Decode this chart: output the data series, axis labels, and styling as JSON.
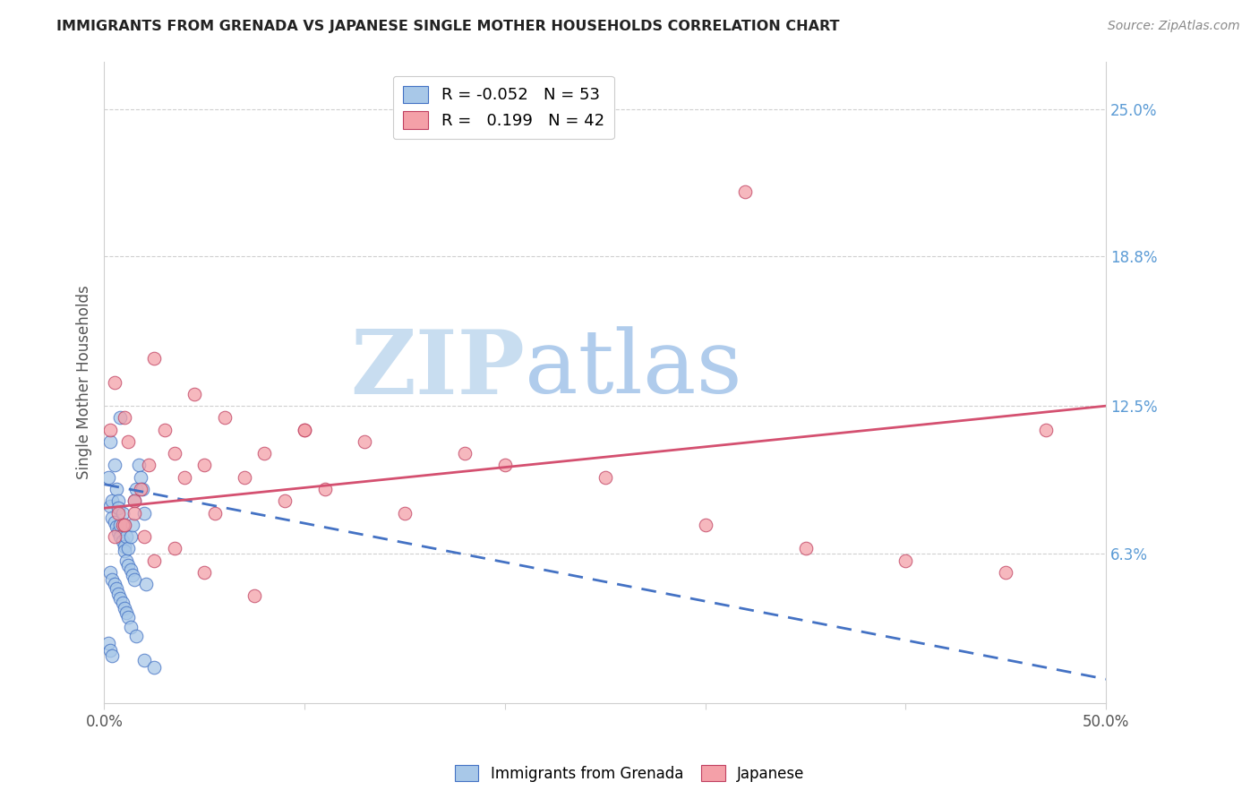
{
  "title": "IMMIGRANTS FROM GRENADA VS JAPANESE SINGLE MOTHER HOUSEHOLDS CORRELATION CHART",
  "source": "Source: ZipAtlas.com",
  "ylabel": "Single Mother Households",
  "xlim": [
    0.0,
    0.5
  ],
  "ylim": [
    0.0,
    0.27
  ],
  "legend_color1": "#a8c8e8",
  "legend_color2": "#f4a0a8",
  "line1_color": "#4472c4",
  "line2_color": "#d45070",
  "scatter1_edge": "#4472c4",
  "scatter2_edge": "#c04060",
  "watermark_zip_color": "#c8ddf0",
  "watermark_atlas_color": "#b0ccec",
  "background_color": "#ffffff",
  "grid_color": "#d0d0d0",
  "right_tick_color": "#5b9bd5",
  "blue_dots_x": [
    0.002,
    0.003,
    0.003,
    0.004,
    0.004,
    0.005,
    0.005,
    0.006,
    0.006,
    0.007,
    0.007,
    0.007,
    0.008,
    0.008,
    0.008,
    0.009,
    0.009,
    0.01,
    0.01,
    0.01,
    0.011,
    0.011,
    0.012,
    0.012,
    0.013,
    0.013,
    0.014,
    0.014,
    0.015,
    0.015,
    0.016,
    0.017,
    0.018,
    0.019,
    0.02,
    0.021,
    0.003,
    0.004,
    0.005,
    0.006,
    0.007,
    0.008,
    0.009,
    0.01,
    0.011,
    0.012,
    0.002,
    0.003,
    0.004,
    0.013,
    0.016,
    0.02,
    0.025
  ],
  "blue_dots_y": [
    0.095,
    0.11,
    0.083,
    0.085,
    0.078,
    0.1,
    0.076,
    0.09,
    0.074,
    0.085,
    0.072,
    0.082,
    0.12,
    0.075,
    0.07,
    0.08,
    0.068,
    0.075,
    0.066,
    0.064,
    0.07,
    0.06,
    0.065,
    0.058,
    0.07,
    0.056,
    0.075,
    0.054,
    0.085,
    0.052,
    0.09,
    0.1,
    0.095,
    0.09,
    0.08,
    0.05,
    0.055,
    0.052,
    0.05,
    0.048,
    0.046,
    0.044,
    0.042,
    0.04,
    0.038,
    0.036,
    0.025,
    0.022,
    0.02,
    0.032,
    0.028,
    0.018,
    0.015
  ],
  "pink_dots_x": [
    0.003,
    0.005,
    0.007,
    0.009,
    0.01,
    0.012,
    0.015,
    0.018,
    0.022,
    0.025,
    0.03,
    0.035,
    0.04,
    0.045,
    0.05,
    0.055,
    0.06,
    0.07,
    0.08,
    0.09,
    0.1,
    0.11,
    0.13,
    0.15,
    0.18,
    0.2,
    0.25,
    0.3,
    0.35,
    0.4,
    0.45,
    0.47,
    0.005,
    0.01,
    0.015,
    0.02,
    0.025,
    0.035,
    0.05,
    0.075,
    0.32,
    0.1
  ],
  "pink_dots_y": [
    0.115,
    0.135,
    0.08,
    0.075,
    0.12,
    0.11,
    0.085,
    0.09,
    0.1,
    0.145,
    0.115,
    0.105,
    0.095,
    0.13,
    0.1,
    0.08,
    0.12,
    0.095,
    0.105,
    0.085,
    0.115,
    0.09,
    0.11,
    0.08,
    0.105,
    0.1,
    0.095,
    0.075,
    0.065,
    0.06,
    0.055,
    0.115,
    0.07,
    0.075,
    0.08,
    0.07,
    0.06,
    0.065,
    0.055,
    0.045,
    0.215,
    0.115
  ],
  "blue_line_x": [
    0.0,
    0.5
  ],
  "blue_line_y": [
    0.092,
    0.01
  ],
  "pink_line_x": [
    0.0,
    0.5
  ],
  "pink_line_y": [
    0.082,
    0.125
  ]
}
